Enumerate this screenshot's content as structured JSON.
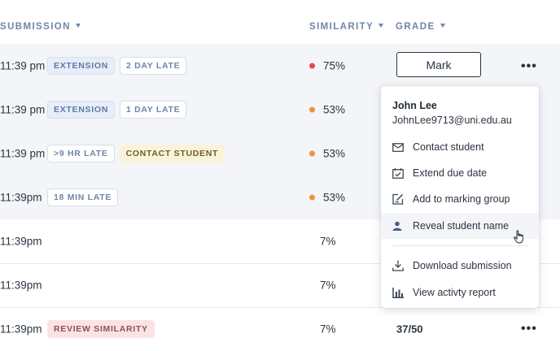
{
  "columns": {
    "submission": "SUBMISSION",
    "similarity": "SIMILARITY",
    "grade": "GRADE"
  },
  "rows": [
    {
      "time": "11:39 pm",
      "tags": [
        {
          "label": "EXTENSION",
          "style": "blue"
        },
        {
          "label": "2 DAY LATE",
          "style": "outline"
        }
      ],
      "similarity": "75%",
      "dot": "#e5484d"
    },
    {
      "time": "11:39 pm",
      "tags": [
        {
          "label": "EXTENSION",
          "style": "blue"
        },
        {
          "label": "1 DAY LATE",
          "style": "outline"
        }
      ],
      "similarity": "53%",
      "dot": "#f0933a"
    },
    {
      "time": "11:39 pm",
      "tags": [
        {
          "label": ">9 HR LATE",
          "style": "outline"
        },
        {
          "label": "CONTACT STUDENT",
          "style": "yellow"
        }
      ],
      "similarity": "53%",
      "dot": "#f0933a"
    },
    {
      "time": "11:39pm",
      "tags": [
        {
          "label": "18 MIN LATE",
          "style": "outline"
        }
      ],
      "similarity": "53%",
      "dot": "#f0933a"
    },
    {
      "time": "11:39pm",
      "tags": [],
      "similarity": "7%",
      "dot": ""
    },
    {
      "time": "11:39pm",
      "tags": [],
      "similarity": "7%",
      "dot": ""
    },
    {
      "time": "11:39pm",
      "tags": [
        {
          "label": "REVIEW SIMILARITY",
          "style": "pink"
        }
      ],
      "similarity": "7%",
      "dot": "",
      "grade": "37/50"
    }
  ],
  "mark_button": "Mark",
  "more_glyph": "•••",
  "menu": {
    "name": "John Lee",
    "email": "JohnLee9713@uni.edu.au",
    "items": [
      {
        "label": "Contact student",
        "icon": "mail-icon"
      },
      {
        "label": "Extend due date",
        "icon": "calendar-check-icon"
      },
      {
        "label": "Add to marking group",
        "icon": "edit-square-icon"
      },
      {
        "label": "Reveal student name",
        "icon": "user-icon"
      },
      {
        "label": "Download submission",
        "icon": "download-icon"
      },
      {
        "label": "View activty report",
        "icon": "bar-chart-icon"
      }
    ]
  }
}
